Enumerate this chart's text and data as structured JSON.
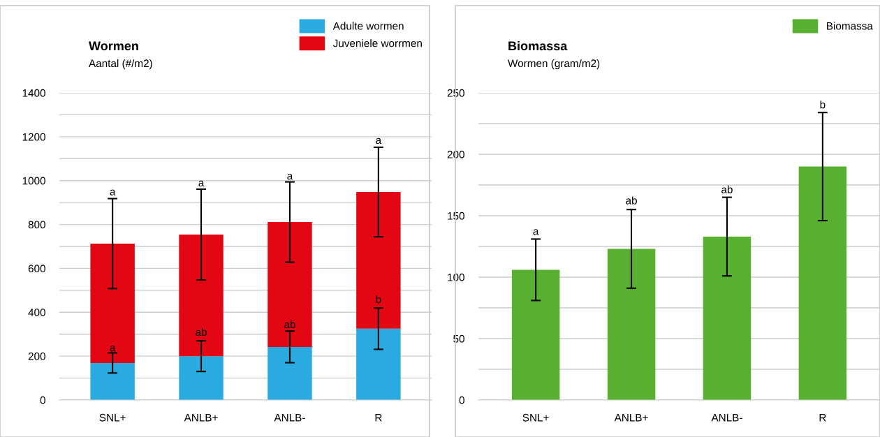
{
  "chart_data": [
    {
      "type": "bar",
      "title": "Wormen",
      "subtitle": "Aantal (#/m2)",
      "stacked": true,
      "categories": [
        "SNL+",
        "ANLB+",
        "ANLB-",
        "R"
      ],
      "series": [
        {
          "name": "Adulte wormen",
          "color": "#29abe2",
          "values": [
            169,
            200,
            242,
            325
          ],
          "errors": [
            46,
            70,
            72,
            94
          ]
        },
        {
          "name": "Juveniele worrmen",
          "color": "#e30613",
          "values": [
            544,
            554,
            569,
            623
          ],
          "errors": [
            205,
            207,
            183,
            204
          ]
        }
      ],
      "ylim": [
        0,
        1400
      ],
      "yticks": [
        0,
        {
          "value": 100,
          "label": null
        },
        200,
        {
          "value": 300,
          "label": null
        },
        400,
        {
          "value": 500,
          "label": null
        },
        600,
        {
          "value": 700,
          "label": null
        },
        800,
        {
          "value": 900,
          "label": null
        },
        1000,
        {
          "value": 1100,
          "label": null
        },
        1200,
        {
          "value": 1300,
          "label": null
        },
        1400
      ],
      "grid": "y",
      "legend": "top right",
      "annotations": [
        {
          "text": "a",
          "x": "SNL+",
          "y": 914
        },
        {
          "text": "a",
          "x": "ANLB+",
          "y": 955
        },
        {
          "text": "a",
          "x": "ANLB-",
          "y": 986
        },
        {
          "text": "a",
          "x": "R",
          "y": 1149
        },
        {
          "text": "a",
          "x": "SNL+",
          "y": 203
        },
        {
          "text": "ab",
          "x": "ANLB+",
          "y": 274
        },
        {
          "text": "ab",
          "x": "ANLB-",
          "y": 309
        },
        {
          "text": "b",
          "x": "R",
          "y": 423
        }
      ]
    },
    {
      "type": "bar",
      "title": "Biomassa",
      "subtitle": "Wormen (gram/m2)",
      "categories": [
        "SNL+",
        "ANLB+",
        "ANLB-",
        "R"
      ],
      "series": [
        {
          "name": "Biomassa",
          "color": "#57b030",
          "values": [
            106,
            123,
            133,
            190
          ],
          "errors": [
            25,
            32,
            32,
            44
          ]
        }
      ],
      "ylim": [
        0,
        250
      ],
      "yticks": [
        0,
        {
          "value": 25,
          "label": null
        },
        50,
        {
          "value": 75,
          "label": null
        },
        100,
        {
          "value": 125,
          "label": null
        },
        150,
        {
          "value": 175,
          "label": null
        },
        200,
        {
          "value": 225,
          "label": null
        },
        250
      ],
      "grid": "y",
      "legend": "top right",
      "annotations": [
        {
          "text": "a",
          "x": "SNL+",
          "y": 131
        },
        {
          "text": "ab",
          "x": "ANLB+",
          "y": 156
        },
        {
          "text": "ab",
          "x": "ANLB-",
          "y": 165
        },
        {
          "text": "b",
          "x": "R",
          "y": 234
        }
      ]
    }
  ]
}
